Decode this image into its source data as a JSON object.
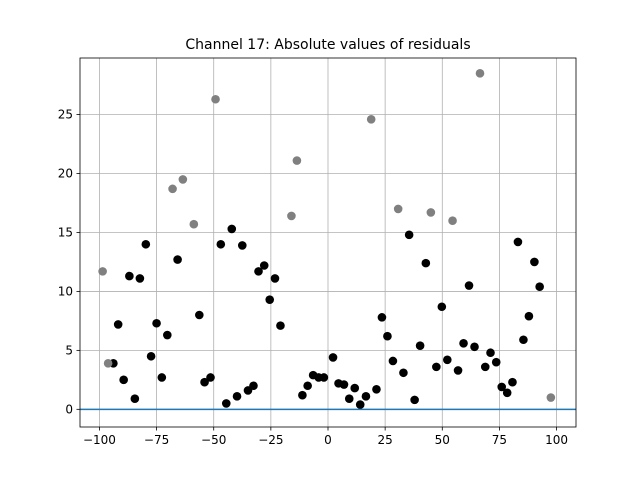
{
  "chart_data": {
    "type": "scatter",
    "title": "Channel 17: Absolute values of residuals",
    "xlabel": "",
    "ylabel": "",
    "xlim": [
      -108.5,
      108.5
    ],
    "ylim": [
      -1.5,
      29.8
    ],
    "xticks": [
      -100,
      -75,
      -50,
      -25,
      0,
      25,
      50,
      75,
      100
    ],
    "yticks": [
      0,
      5,
      10,
      15,
      20,
      25
    ],
    "grid": true,
    "hline": {
      "y": 0,
      "color": "#1f77b4"
    },
    "series": [
      {
        "color": "#000000",
        "points": [
          [
            -93.9,
            3.9
          ],
          [
            -91.8,
            7.2
          ],
          [
            -89.4,
            2.5
          ],
          [
            -86.9,
            11.3
          ],
          [
            -84.5,
            0.9
          ],
          [
            -82.3,
            11.1
          ],
          [
            -79.7,
            14.0
          ],
          [
            -77.4,
            4.5
          ],
          [
            -75.0,
            7.3
          ],
          [
            -72.7,
            2.7
          ],
          [
            -70.3,
            6.3
          ],
          [
            -65.8,
            12.7
          ],
          [
            -56.3,
            8.0
          ],
          [
            -54.0,
            2.3
          ],
          [
            -51.4,
            2.7
          ],
          [
            -46.9,
            14.0
          ],
          [
            -44.5,
            0.5
          ],
          [
            -42.1,
            15.3
          ],
          [
            -39.8,
            1.1
          ],
          [
            -37.5,
            13.9
          ],
          [
            -35.0,
            1.6
          ],
          [
            -32.6,
            2.0
          ],
          [
            -30.4,
            11.7
          ],
          [
            -27.9,
            12.2
          ],
          [
            -25.5,
            9.3
          ],
          [
            -23.2,
            11.1
          ],
          [
            -20.8,
            7.1
          ],
          [
            -11.2,
            1.2
          ],
          [
            -8.9,
            2.0
          ],
          [
            -6.5,
            2.9
          ],
          [
            -4.1,
            2.7
          ],
          [
            -1.8,
            2.7
          ],
          [
            2.2,
            4.4
          ],
          [
            4.6,
            2.2
          ],
          [
            7.0,
            2.1
          ],
          [
            9.3,
            0.9
          ],
          [
            11.7,
            1.8
          ],
          [
            14.1,
            0.4
          ],
          [
            16.6,
            1.1
          ],
          [
            21.2,
            1.7
          ],
          [
            23.6,
            7.8
          ],
          [
            26.0,
            6.2
          ],
          [
            28.4,
            4.1
          ],
          [
            33.0,
            3.1
          ],
          [
            35.5,
            14.8
          ],
          [
            37.9,
            0.8
          ],
          [
            40.3,
            5.4
          ],
          [
            42.8,
            12.4
          ],
          [
            47.4,
            3.6
          ],
          [
            49.8,
            8.7
          ],
          [
            52.2,
            4.2
          ],
          [
            56.9,
            3.3
          ],
          [
            59.3,
            5.6
          ],
          [
            61.7,
            10.5
          ],
          [
            64.1,
            5.3
          ],
          [
            68.8,
            3.6
          ],
          [
            71.1,
            4.8
          ],
          [
            73.6,
            4.0
          ],
          [
            76.0,
            1.9
          ],
          [
            78.4,
            1.4
          ],
          [
            80.7,
            2.3
          ],
          [
            83.1,
            14.2
          ],
          [
            85.5,
            5.9
          ],
          [
            87.9,
            7.9
          ],
          [
            90.3,
            12.5
          ],
          [
            92.6,
            10.4
          ]
        ]
      },
      {
        "color": "#808080",
        "points": [
          [
            -98.6,
            11.7
          ],
          [
            -96.2,
            3.9
          ],
          [
            -68.0,
            18.7
          ],
          [
            -63.5,
            19.5
          ],
          [
            -58.7,
            15.7
          ],
          [
            -49.2,
            26.3
          ],
          [
            -16.0,
            16.4
          ],
          [
            -13.6,
            21.1
          ],
          [
            18.9,
            24.6
          ],
          [
            30.7,
            17.0
          ],
          [
            45.0,
            16.7
          ],
          [
            54.5,
            16.0
          ],
          [
            66.5,
            28.5
          ],
          [
            97.5,
            1.0
          ]
        ]
      }
    ]
  }
}
